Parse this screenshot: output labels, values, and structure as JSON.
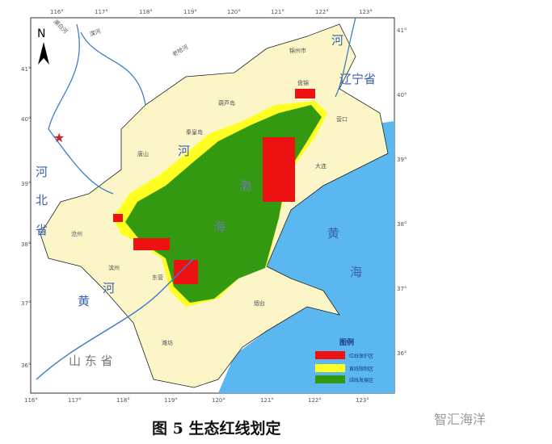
{
  "caption": "图 5  生态红线划定",
  "watermark": "智汇海洋",
  "colors": {
    "red_zone": "#ee1111",
    "yellow_zone": "#ffff22",
    "green_zone": "#339911",
    "land": "#fbf5c8",
    "sea": "#5ab7ef",
    "river": "#3d7fc9"
  },
  "longitude_ticks": [
    "116°",
    "117°",
    "118°",
    "119°",
    "120°",
    "121°",
    "122°",
    "123°"
  ],
  "latitude_ticks": [
    "41°",
    "40°",
    "39°",
    "38°",
    "37°",
    "36°"
  ],
  "north_label": "N",
  "regions": {
    "hebei_a": "河",
    "hebei_b": "北",
    "hebei_c": "省",
    "liaoning": "辽宁省",
    "shandong": "山 东 省",
    "he_mid": "河",
    "huang": "黄",
    "he_low": "河",
    "bohai_a": "渤",
    "bohai_b": "海",
    "huanghai_a": "黄",
    "huanghai_b": "海",
    "liao_he": "河"
  },
  "cities": {
    "jinzhou": "锦州市",
    "panjin": "盘锦",
    "huludao": "葫芦岛",
    "yingkou": "营口",
    "qinhuangdao": "秦皇岛",
    "tangshan": "唐山",
    "dalian": "大连",
    "cangzhou": "沧州",
    "binzhou": "滨州",
    "dongying": "东营",
    "yantai": "烟台",
    "weifang": "潍坊"
  },
  "rivers": {
    "chaobai": "潮白河",
    "luan": "滦河",
    "laoha": "老哈河"
  },
  "legend": {
    "title": "图例",
    "items": [
      {
        "label": "红线保护区",
        "color": "#ee1111"
      },
      {
        "label": "黄线限制区",
        "color": "#ffff22"
      },
      {
        "label": "绿线发展区",
        "color": "#339911"
      }
    ]
  }
}
